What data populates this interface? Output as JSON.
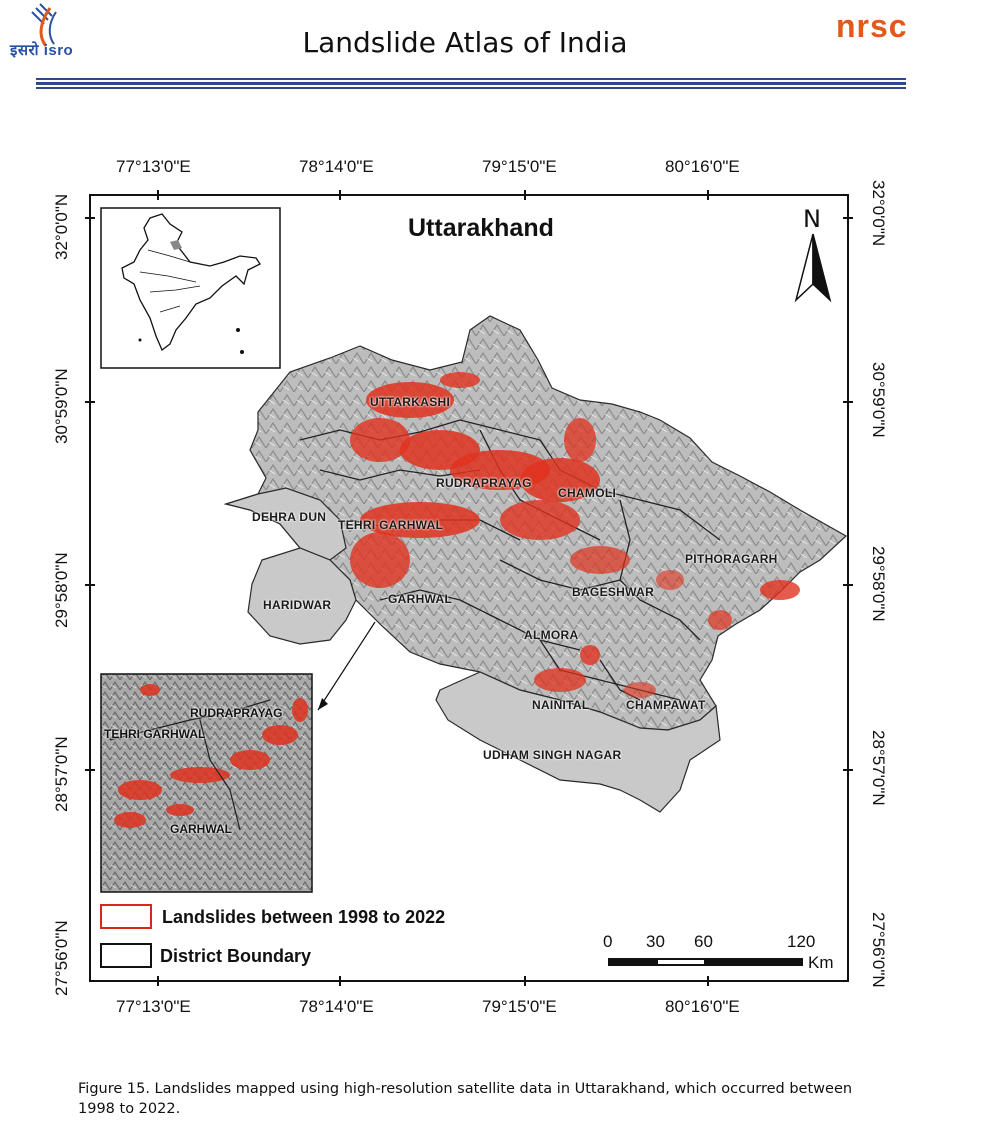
{
  "header": {
    "left_logo_text": "इसरो isro",
    "title": "Landslide Atlas of India",
    "right_logo_text": "nrsc"
  },
  "map": {
    "title": "Uttarakhand",
    "north_label": "N",
    "longitude_labels": [
      "77°13'0\"E",
      "78°14'0\"E",
      "79°15'0\"E",
      "80°16'0\"E"
    ],
    "latitude_labels": [
      "32°0'0\"N",
      "30°59'0\"N",
      "29°58'0\"N",
      "28°57'0\"N",
      "27°56'0\"N"
    ],
    "districts": {
      "uttarkashi": "UTTARKASHI",
      "rudraprayag": "RUDRAPRAYAG",
      "chamoli": "CHAMOLI",
      "dehradun": "DEHRA DUN",
      "tehri": "TEHRI GARHWAL",
      "pithoragarh": "PITHORAGARH",
      "haridwar": "HARIDWAR",
      "garhwal": "GARHWAL",
      "bageshwar": "BAGESHWAR",
      "almora": "ALMORA",
      "nainital": "NAINITAL",
      "champawat": "CHAMPAWAT",
      "udham": "UDHAM SINGH NAGAR"
    },
    "inset_labels": {
      "rudraprayag": "RUDRAPRAYAG",
      "tehri": "TEHRI GARHWAL",
      "garhwal": "GARHWAL"
    },
    "legend": {
      "landslides": "Landslides between 1998 to 2022",
      "boundary": "District Boundary"
    },
    "scale": {
      "ticks": [
        "0",
        "30",
        "60",
        "120"
      ],
      "unit": "Km"
    },
    "colors": {
      "landslide": "#e0321e",
      "terrain": "#b9b9b9",
      "plain": "#cfcfcf"
    }
  },
  "caption": "Figure 15. Landslides mapped using high-resolution satellite data in Uttarakhand, which occurred between 1998 to 2022."
}
